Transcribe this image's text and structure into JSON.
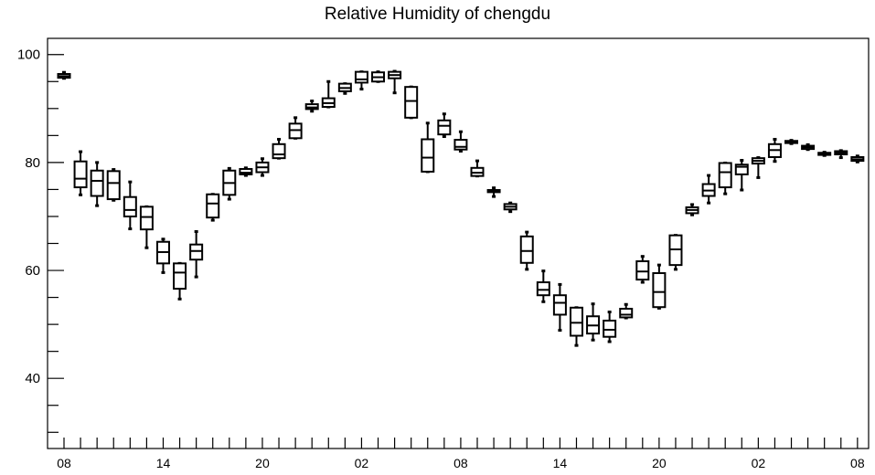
{
  "chart_data": {
    "type": "box",
    "title": "Relative Humidity of chengdu",
    "xlabel": "",
    "ylabel": "",
    "ylim": [
      27,
      103
    ],
    "y_ticks": [
      40,
      60,
      80,
      100
    ],
    "x_tick_labels": [
      "08",
      "14",
      "20",
      "02",
      "08",
      "14",
      "20",
      "02",
      "08"
    ],
    "x_tick_label_index": [
      0,
      6,
      12,
      18,
      24,
      30,
      36,
      42,
      48
    ],
    "grid": false,
    "boxes": [
      {
        "x": 0,
        "lo": 95.6,
        "q1": 95.7,
        "med": 96.0,
        "q3": 96.4,
        "hi": 96.7
      },
      {
        "x": 1,
        "lo": 74.0,
        "q1": 75.4,
        "med": 77.0,
        "q3": 80.2,
        "hi": 82.0
      },
      {
        "x": 2,
        "lo": 72.0,
        "q1": 73.8,
        "med": 76.6,
        "q3": 78.5,
        "hi": 80.0
      },
      {
        "x": 3,
        "lo": 73.0,
        "q1": 73.2,
        "med": 76.2,
        "q3": 78.4,
        "hi": 78.7
      },
      {
        "x": 4,
        "lo": 67.7,
        "q1": 70.0,
        "med": 71.2,
        "q3": 73.6,
        "hi": 76.4
      },
      {
        "x": 5,
        "lo": 64.2,
        "q1": 67.6,
        "med": 69.9,
        "q3": 71.8,
        "hi": 71.8
      },
      {
        "x": 6,
        "lo": 59.6,
        "q1": 61.3,
        "med": 63.4,
        "q3": 65.3,
        "hi": 65.8
      },
      {
        "x": 7,
        "lo": 54.7,
        "q1": 56.6,
        "med": 59.6,
        "q3": 61.3,
        "hi": 61.3
      },
      {
        "x": 8,
        "lo": 58.8,
        "q1": 62.0,
        "med": 63.6,
        "q3": 64.8,
        "hi": 67.2
      },
      {
        "x": 9,
        "lo": 69.3,
        "q1": 69.8,
        "med": 72.4,
        "q3": 74.1,
        "hi": 74.1
      },
      {
        "x": 10,
        "lo": 73.2,
        "q1": 74.0,
        "med": 76.2,
        "q3": 78.5,
        "hi": 78.9
      },
      {
        "x": 11,
        "lo": 77.6,
        "q1": 77.8,
        "med": 78.1,
        "q3": 78.8,
        "hi": 79.0
      },
      {
        "x": 12,
        "lo": 77.6,
        "q1": 78.2,
        "med": 79.1,
        "q3": 80.0,
        "hi": 80.7
      },
      {
        "x": 13,
        "lo": 80.8,
        "q1": 80.8,
        "med": 81.5,
        "q3": 83.4,
        "hi": 84.3
      },
      {
        "x": 14,
        "lo": 84.5,
        "q1": 84.5,
        "med": 86.0,
        "q3": 87.2,
        "hi": 88.3
      },
      {
        "x": 15,
        "lo": 89.5,
        "q1": 89.9,
        "med": 90.2,
        "q3": 90.8,
        "hi": 91.4
      },
      {
        "x": 16,
        "lo": 90.3,
        "q1": 90.3,
        "med": 91.0,
        "q3": 91.9,
        "hi": 95.0
      },
      {
        "x": 17,
        "lo": 92.8,
        "q1": 93.2,
        "med": 93.8,
        "q3": 94.6,
        "hi": 94.6
      },
      {
        "x": 18,
        "lo": 93.6,
        "q1": 94.8,
        "med": 95.4,
        "q3": 96.8,
        "hi": 96.8
      },
      {
        "x": 19,
        "lo": 95.0,
        "q1": 95.0,
        "med": 95.8,
        "q3": 96.7,
        "hi": 96.8
      },
      {
        "x": 20,
        "lo": 92.9,
        "q1": 95.6,
        "med": 96.2,
        "q3": 96.8,
        "hi": 96.9
      },
      {
        "x": 21,
        "lo": 88.3,
        "q1": 88.3,
        "med": 91.4,
        "q3": 94.0,
        "hi": 94.0
      },
      {
        "x": 22,
        "lo": 78.3,
        "q1": 78.3,
        "med": 80.9,
        "q3": 84.3,
        "hi": 87.3
      },
      {
        "x": 23,
        "lo": 84.8,
        "q1": 85.2,
        "med": 86.8,
        "q3": 87.8,
        "hi": 89.0
      },
      {
        "x": 24,
        "lo": 82.1,
        "q1": 82.4,
        "med": 82.9,
        "q3": 84.2,
        "hi": 85.7
      },
      {
        "x": 25,
        "lo": 77.5,
        "q1": 77.5,
        "med": 78.1,
        "q3": 79.0,
        "hi": 80.3
      },
      {
        "x": 26,
        "lo": 73.7,
        "q1": 74.5,
        "med": 74.8,
        "q3": 74.9,
        "hi": 75.3
      },
      {
        "x": 27,
        "lo": 70.9,
        "q1": 71.3,
        "med": 71.8,
        "q3": 72.3,
        "hi": 72.5
      },
      {
        "x": 28,
        "lo": 60.2,
        "q1": 61.4,
        "med": 63.6,
        "q3": 66.3,
        "hi": 67.1
      },
      {
        "x": 29,
        "lo": 54.2,
        "q1": 55.4,
        "med": 56.4,
        "q3": 57.8,
        "hi": 59.9
      },
      {
        "x": 30,
        "lo": 48.9,
        "q1": 51.8,
        "med": 54.0,
        "q3": 55.4,
        "hi": 57.4
      },
      {
        "x": 31,
        "lo": 46.1,
        "q1": 47.9,
        "med": 50.3,
        "q3": 53.1,
        "hi": 53.1
      },
      {
        "x": 32,
        "lo": 47.1,
        "q1": 48.3,
        "med": 49.8,
        "q3": 51.5,
        "hi": 53.8
      },
      {
        "x": 33,
        "lo": 46.8,
        "q1": 47.7,
        "med": 49.0,
        "q3": 50.7,
        "hi": 52.3
      },
      {
        "x": 34,
        "lo": 51.2,
        "q1": 51.3,
        "med": 51.8,
        "q3": 52.9,
        "hi": 53.7
      },
      {
        "x": 35,
        "lo": 57.8,
        "q1": 58.3,
        "med": 59.8,
        "q3": 61.7,
        "hi": 62.6
      },
      {
        "x": 36,
        "lo": 53.0,
        "q1": 53.2,
        "med": 56.0,
        "q3": 59.5,
        "hi": 61.0
      },
      {
        "x": 37,
        "lo": 60.2,
        "q1": 61.0,
        "med": 63.9,
        "q3": 66.5,
        "hi": 66.5
      },
      {
        "x": 38,
        "lo": 70.3,
        "q1": 70.6,
        "med": 71.2,
        "q3": 71.7,
        "hi": 72.2
      },
      {
        "x": 39,
        "lo": 72.5,
        "q1": 73.8,
        "med": 74.8,
        "q3": 76.0,
        "hi": 77.6
      },
      {
        "x": 40,
        "lo": 74.2,
        "q1": 75.4,
        "med": 78.2,
        "q3": 79.9,
        "hi": 79.9
      },
      {
        "x": 41,
        "lo": 74.9,
        "q1": 77.8,
        "med": 79.2,
        "q3": 79.6,
        "hi": 80.4
      },
      {
        "x": 42,
        "lo": 77.2,
        "q1": 79.8,
        "med": 80.3,
        "q3": 80.8,
        "hi": 80.9
      },
      {
        "x": 43,
        "lo": 80.2,
        "q1": 81.0,
        "med": 82.3,
        "q3": 83.4,
        "hi": 84.3
      },
      {
        "x": 44,
        "lo": 83.5,
        "q1": 83.6,
        "med": 83.8,
        "q3": 84.0,
        "hi": 84.1
      },
      {
        "x": 45,
        "lo": 82.4,
        "q1": 82.5,
        "med": 82.8,
        "q3": 83.1,
        "hi": 83.3
      },
      {
        "x": 46,
        "lo": 81.3,
        "q1": 81.4,
        "med": 81.6,
        "q3": 81.8,
        "hi": 81.9
      },
      {
        "x": 47,
        "lo": 80.9,
        "q1": 81.5,
        "med": 81.8,
        "q3": 82.1,
        "hi": 82.2
      },
      {
        "x": 48,
        "lo": 80.1,
        "q1": 80.3,
        "med": 80.6,
        "q3": 81.0,
        "hi": 81.2
      }
    ]
  }
}
